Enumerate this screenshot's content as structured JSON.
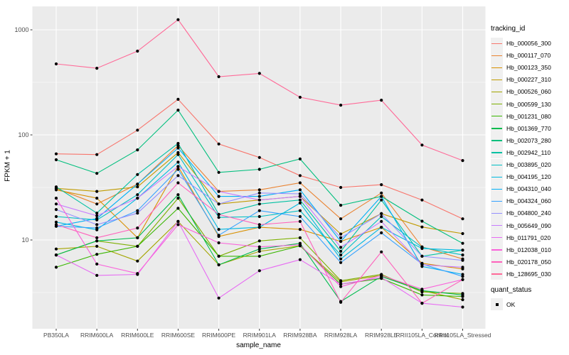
{
  "chart_data": {
    "type": "line",
    "title": "",
    "xlabel": "sample_name",
    "ylabel": "FPKM + 1",
    "x_categories": [
      "PB350LA",
      "RRIM600LA",
      "RRIM600LE",
      "RRIM600SE",
      "RRIM600PE",
      "RRIM901LA",
      "RRIM928BA",
      "RRIM928LA",
      "RRIM928LE",
      "RRII105LA_Control",
      "RRII105LA_Stressed"
    ],
    "y_scale": "log10",
    "y_ticks": [
      10,
      100,
      1000
    ],
    "y_tick_labels": [
      "10",
      "100",
      "1000"
    ],
    "y_minor_ticks": [
      3.1623,
      31.623,
      316.23
    ],
    "ylim": [
      1.43,
      1671
    ],
    "grid": true,
    "legend_position": "right",
    "panel_bg": "#EBEBEB",
    "grid_color": "#FFFFFF",
    "point_color": "#000000",
    "legend": {
      "color_title": "tracking_id",
      "shape_title": "quant_status",
      "shape_items": [
        {
          "label": "OK"
        }
      ]
    },
    "series": [
      {
        "name": "Hb_000056_300",
        "color": "#F8766D",
        "values": [
          66,
          65,
          111,
          218,
          82,
          61,
          41,
          31.6,
          33.6,
          24,
          15.9
        ]
      },
      {
        "name": "Hb_000117_070",
        "color": "#EA8331",
        "values": [
          31,
          22,
          34,
          79,
          29,
          30,
          35,
          15.9,
          28,
          8.6,
          6.6
        ]
      },
      {
        "name": "Hb_000123_350",
        "color": "#D89000",
        "values": [
          30,
          25,
          10.5,
          50,
          10.8,
          13.2,
          12.6,
          9.7,
          13.2,
          6.0,
          5.3
        ]
      },
      {
        "name": "Hb_000227_310",
        "color": "#C09B00",
        "values": [
          31,
          29,
          32,
          68,
          22,
          24,
          26,
          11.4,
          17.8,
          13.3,
          11.5
        ]
      },
      {
        "name": "Hb_000526_060",
        "color": "#A3A500",
        "values": [
          8.2,
          8.7,
          6.3,
          15,
          5.8,
          7.8,
          8.8,
          4.0,
          4.6,
          3.3,
          2.7
        ]
      },
      {
        "name": "Hb_000599_130",
        "color": "#7CAE00",
        "values": [
          7.2,
          9.8,
          8.7,
          25,
          7.0,
          9.8,
          10.5,
          4.1,
          4.7,
          3.2,
          3.1
        ]
      },
      {
        "name": "Hb_001231_080",
        "color": "#39B600",
        "values": [
          5.5,
          7.3,
          8.7,
          20,
          7.0,
          7.0,
          8.8,
          3.8,
          4.3,
          3.0,
          2.9
        ]
      },
      {
        "name": "Hb_001369_770",
        "color": "#00BB4E",
        "values": [
          7.2,
          9.8,
          10.5,
          27,
          5.8,
          8.2,
          9.3,
          2.6,
          4.5,
          3.3,
          3.0
        ]
      },
      {
        "name": "Hb_002073_280",
        "color": "#00BF7D",
        "values": [
          58,
          43,
          72,
          172,
          44,
          47,
          59,
          21.4,
          26,
          15.1,
          9.3
        ]
      },
      {
        "name": "Hb_002942_110",
        "color": "#00C1A3",
        "values": [
          32,
          18,
          42,
          83,
          17.5,
          22,
          24,
          7.8,
          24,
          7.0,
          8.0
        ]
      },
      {
        "name": "Hb_003895_020",
        "color": "#00BFC4",
        "values": [
          16.7,
          15.5,
          27,
          65,
          16.4,
          16.7,
          19,
          7.2,
          16.7,
          8.5,
          7.2
        ]
      },
      {
        "name": "Hb_004195_120",
        "color": "#00BAE0",
        "values": [
          14.8,
          12.5,
          25,
          55,
          12.6,
          13.2,
          22.5,
          6.6,
          13.2,
          8.3,
          8.0
        ]
      },
      {
        "name": "Hb_004310_040",
        "color": "#00B0F6",
        "values": [
          13.5,
          16,
          34,
          75,
          26,
          26,
          30,
          9.7,
          26,
          5.6,
          4.7
        ]
      },
      {
        "name": "Hb_004324_060",
        "color": "#35A2FF",
        "values": [
          13.5,
          13,
          19,
          47,
          11.1,
          19,
          16.7,
          6.1,
          11.7,
          5.9,
          4.5
        ]
      },
      {
        "name": "Hb_004800_240",
        "color": "#9590FF",
        "values": [
          19.5,
          14,
          18,
          41,
          22,
          28,
          27.5,
          10.5,
          17.8,
          7.0,
          6.4
        ]
      },
      {
        "name": "Hb_005649_090",
        "color": "#C77CFF",
        "values": [
          22,
          17,
          25,
          50,
          29,
          24,
          26,
          8.5,
          15,
          5.8,
          5.5
        ]
      },
      {
        "name": "Hb_011791_020",
        "color": "#E76BF3",
        "values": [
          7.2,
          4.6,
          4.7,
          15,
          2.8,
          5.1,
          6.5,
          3.8,
          4.4,
          2.5,
          2.3
        ]
      },
      {
        "name": "Hb_012038_010",
        "color": "#FA62DB",
        "values": [
          25,
          5.9,
          4.8,
          14,
          9.4,
          8.6,
          9.0,
          3.6,
          4.6,
          3.4,
          4.2
        ]
      },
      {
        "name": "Hb_020178_050",
        "color": "#FF62BC",
        "values": [
          14,
          10.5,
          13,
          35,
          17.5,
          14,
          15,
          2.55,
          7.7,
          2.5,
          4.2
        ]
      },
      {
        "name": "Hb_128695_030",
        "color": "#FF6A98",
        "values": [
          474,
          431,
          627,
          1250,
          358,
          385,
          228,
          192,
          214,
          80,
          57
        ]
      }
    ]
  }
}
